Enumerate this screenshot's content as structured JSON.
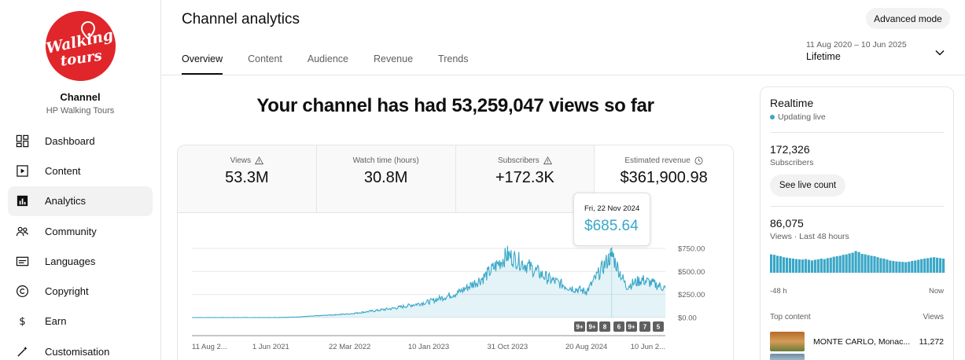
{
  "sidebar": {
    "logo_text": "Walking tours",
    "channel_label": "Channel",
    "channel_name": "HP Walking Tours",
    "items": [
      {
        "label": "Dashboard",
        "icon": "dashboard-icon"
      },
      {
        "label": "Content",
        "icon": "content-icon"
      },
      {
        "label": "Analytics",
        "icon": "analytics-icon",
        "active": true
      },
      {
        "label": "Community",
        "icon": "community-icon"
      },
      {
        "label": "Languages",
        "icon": "languages-icon"
      },
      {
        "label": "Copyright",
        "icon": "copyright-icon"
      },
      {
        "label": "Earn",
        "icon": "earn-icon"
      },
      {
        "label": "Customisation",
        "icon": "customisation-icon"
      }
    ]
  },
  "header": {
    "title": "Channel analytics",
    "advanced_mode": "Advanced mode",
    "tabs": [
      "Overview",
      "Content",
      "Audience",
      "Revenue",
      "Trends"
    ],
    "active_tab": "Overview",
    "date_range": "11 Aug 2020 – 10 Jun 2025",
    "period": "Lifetime"
  },
  "headline": "Your channel has had 53,259,047 views so far",
  "metrics": [
    {
      "label": "Views",
      "value": "53.3M",
      "icon": "warning-icon"
    },
    {
      "label": "Watch time (hours)",
      "value": "30.8M",
      "icon": ""
    },
    {
      "label": "Subscribers",
      "value": "+172.3K",
      "icon": "warning-icon"
    },
    {
      "label": "Estimated revenue",
      "value": "$361,900.98",
      "icon": "clock-icon"
    }
  ],
  "tooltip": {
    "date": "Fri, 22 Nov 2024",
    "value": "$685.64"
  },
  "chart_data": {
    "type": "area",
    "x": [
      "2020-08-11",
      "2021-06-01",
      "2022-03-22",
      "2023-01-10",
      "2023-10-31",
      "2024-08-20",
      "2025-06-10"
    ],
    "x_tick_labels": [
      "11 Aug 2...",
      "1 Jun 2021",
      "22 Mar 2022",
      "10 Jan 2023",
      "31 Oct 2023",
      "20 Aug 2024",
      "10 Jun 2..."
    ],
    "y_tick_labels": [
      "$750.00",
      "$500.00",
      "$250.00",
      "$0.00"
    ],
    "ylim": [
      0,
      750
    ],
    "series": [
      {
        "values_at_points": [
          {
            "x": "2020-08-11",
            "y": 0
          },
          {
            "x": "2021-06-01",
            "y": 0
          },
          {
            "x": "2021-09-01",
            "y": 5
          },
          {
            "x": "2022-03-22",
            "y": 40
          },
          {
            "x": "2022-09-01",
            "y": 100
          },
          {
            "x": "2023-01-10",
            "y": 170
          },
          {
            "x": "2023-05-01",
            "y": 270
          },
          {
            "x": "2023-08-01",
            "y": 430
          },
          {
            "x": "2023-10-31",
            "y": 680
          },
          {
            "x": "2024-01-15",
            "y": 560
          },
          {
            "x": "2024-04-01",
            "y": 420
          },
          {
            "x": "2024-06-15",
            "y": 330
          },
          {
            "x": "2024-08-20",
            "y": 280
          },
          {
            "x": "2024-11-22",
            "y": 686
          },
          {
            "x": "2025-01-15",
            "y": 340
          },
          {
            "x": "2025-03-15",
            "y": 410
          },
          {
            "x": "2025-06-10",
            "y": 320
          }
        ]
      }
    ],
    "annotation_badges": [
      "9+",
      "9+",
      "8",
      "6",
      "9+",
      "7",
      "5"
    ],
    "color": "#3aa7c7",
    "grid": true
  },
  "realtime": {
    "title": "Realtime",
    "status": "Updating live",
    "subscribers": "172,326",
    "subscribers_label": "Subscribers",
    "live_count_button": "See live count",
    "views": "86,075",
    "views_label": "Views · Last 48 hours",
    "axis_start": "-48 h",
    "axis_end": "Now",
    "bars": [
      0.78,
      0.76,
      0.72,
      0.7,
      0.66,
      0.64,
      0.62,
      0.6,
      0.58,
      0.57,
      0.56,
      0.58,
      0.55,
      0.52,
      0.55,
      0.57,
      0.6,
      0.58,
      0.62,
      0.64,
      0.68,
      0.7,
      0.72,
      0.76,
      0.78,
      0.82,
      0.85,
      0.92,
      0.88,
      0.8,
      0.78,
      0.75,
      0.72,
      0.7,
      0.66,
      0.62,
      0.6,
      0.56,
      0.52,
      0.5,
      0.48,
      0.47,
      0.46,
      0.45,
      0.47,
      0.5,
      0.52,
      0.55,
      0.58,
      0.6,
      0.62,
      0.64,
      0.66,
      0.64,
      0.62,
      0.6
    ],
    "top_content_label": "Top content",
    "top_views_label": "Views",
    "top_items": [
      {
        "title": "MONTE CARLO, Monac...",
        "views": "11,272"
      }
    ]
  }
}
